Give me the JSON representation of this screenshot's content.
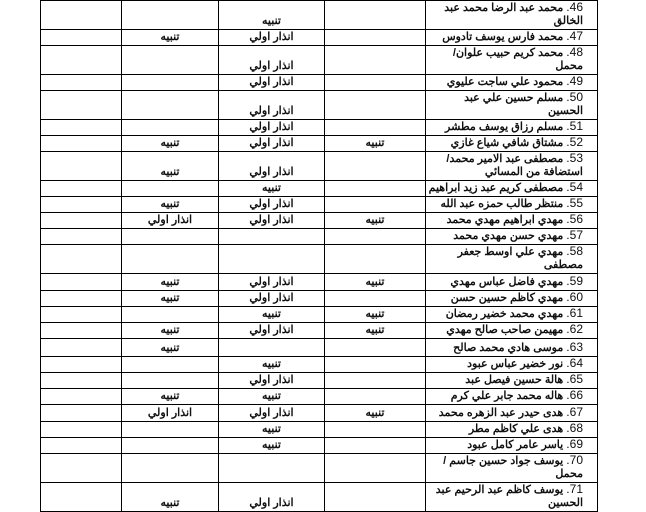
{
  "rows": [
    {
      "n": "46.",
      "name": "محمد عبد الرضا محمد عبد الخالق",
      "c1": "",
      "c2": "تنبيه",
      "c3": "",
      "c4": ""
    },
    {
      "n": "47.",
      "name": "محمد فارس يوسف تادوس",
      "c1": "",
      "c2": "انذار اولي",
      "c3": "تنبيه",
      "c4": ""
    },
    {
      "n": "48.",
      "name": "محمد كريم حبيب علوان/ محمل",
      "c1": "",
      "c2": "انذار اولي",
      "c3": "",
      "c4": ""
    },
    {
      "n": "49.",
      "name": "محمود علي ساجت عليوي",
      "c1": "",
      "c2": "انذار اولي",
      "c3": "",
      "c4": ""
    },
    {
      "n": "50.",
      "name": "مسلم حسين علي عبد الحسين",
      "c1": "",
      "c2": "انذار اولي",
      "c3": "",
      "c4": ""
    },
    {
      "n": "51.",
      "name": "مسلم رزاق يوسف مطشر",
      "c1": "",
      "c2": "انذار اولي",
      "c3": "",
      "c4": ""
    },
    {
      "n": "52.",
      "name": "مشتاق شافي شياع غازي",
      "c1": "تنبيه",
      "c2": "انذار اولي",
      "c3": "تنبيه",
      "c4": ""
    },
    {
      "n": "53.",
      "name": "مصطفى عبد الامير محمد/استضافة من المسائي",
      "c1": "",
      "c2": "انذار اولي",
      "c3": "تنبيه",
      "c4": ""
    },
    {
      "n": "54.",
      "name": "مصطفى كريم عبد زيد ابراهيم",
      "c1": "",
      "c2": "تنبيه",
      "c3": "",
      "c4": ""
    },
    {
      "n": "55.",
      "name": "منتظر طالب حمزه عبد الله",
      "c1": "",
      "c2": "انذار اولي",
      "c3": "تنبيه",
      "c4": ""
    },
    {
      "n": "56.",
      "name": "مهدي ابراهيم مهدي محمد",
      "c1": "تنبيه",
      "c2": "انذار اولي",
      "c3": "انذار اولي",
      "c4": ""
    },
    {
      "n": "57.",
      "name": "مهدي حسن مهدي محمد",
      "c1": "",
      "c2": "",
      "c3": "",
      "c4": ""
    },
    {
      "n": "58.",
      "name": "مهدي علي اوسط جعفر مصطفى",
      "c1": "",
      "c2": "",
      "c3": "",
      "c4": ""
    },
    {
      "n": "59.",
      "name": "مهدي فاضل عباس مهدي",
      "c1": "تنبيه",
      "c2": "انذار اولي",
      "c3": "تنبيه",
      "c4": ""
    },
    {
      "n": "60.",
      "name": "مهدي كاظم حسين حسن",
      "c1": "",
      "c2": "انذار اولي",
      "c3": "تنبيه",
      "c4": ""
    },
    {
      "n": "61.",
      "name": "مهدي محمد خضير رمضان",
      "c1": "تنبيه",
      "c2": "تنبيه",
      "c3": "",
      "c4": ""
    },
    {
      "n": "62.",
      "name": "مهيمن صاحب صالح مهدي",
      "c1": "تنبيه",
      "c2": "انذار اولي",
      "c3": "تنبيه",
      "c4": ""
    },
    {
      "n": "63.",
      "name": "موسى هادي محمد صالح",
      "c1": "",
      "c2": "",
      "c3": "تنبيه",
      "c4": ""
    },
    {
      "n": "64.",
      "name": "نور خضير عباس عبود",
      "c1": "",
      "c2": "تنبيه",
      "c3": "",
      "c4": ""
    },
    {
      "n": "65.",
      "name": "هالة حسين فيصل عبد",
      "c1": "",
      "c2": "انذار اولي",
      "c3": "",
      "c4": ""
    },
    {
      "n": "66.",
      "name": "هاله محمد جابر علي كرم",
      "c1": "",
      "c2": "تنبيه",
      "c3": "تنبيه",
      "c4": ""
    },
    {
      "n": "67.",
      "name": "هدى حيدر عبد الزهره محمد",
      "c1": "تنبيه",
      "c2": "انذار اولي",
      "c3": "انذار اولي",
      "c4": ""
    },
    {
      "n": "68.",
      "name": "هدى علي كاظم مطر",
      "c1": "",
      "c2": "تنبيه",
      "c3": "",
      "c4": ""
    },
    {
      "n": "69.",
      "name": "ياسر عامر كامل عبود",
      "c1": "",
      "c2": "تنبيه",
      "c3": "",
      "c4": ""
    },
    {
      "n": "70.",
      "name": "يوسف جواد حسين جاسم / محمل",
      "c1": "",
      "c2": "",
      "c3": "",
      "c4": ""
    },
    {
      "n": "71.",
      "name": "يوسف كاظم عبد الرحيم عبد الحسين",
      "c1": "",
      "c2": "انذار اولي",
      "c3": "تنبيه",
      "c4": ""
    }
  ]
}
